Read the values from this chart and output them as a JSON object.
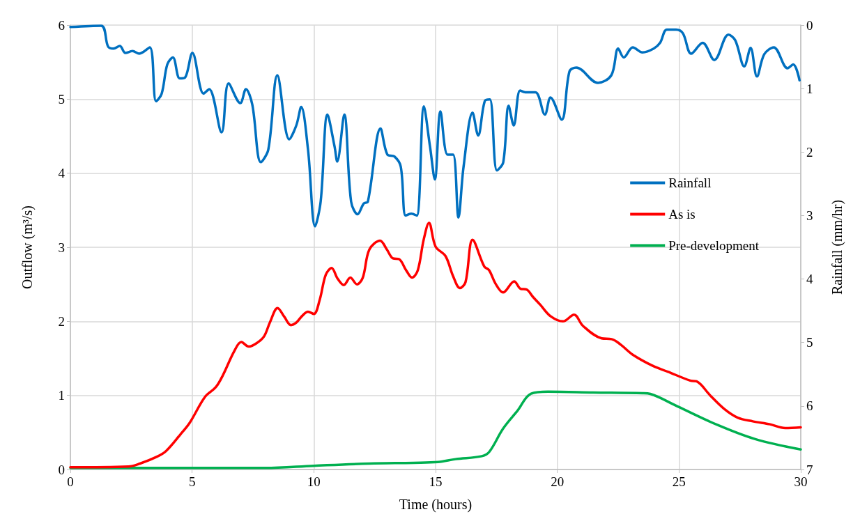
{
  "chart_data": {
    "type": "line",
    "xlabel": "Time (hours)",
    "ylabel": "Outflow (m³/s)",
    "y2label": "Rainfall (mm/hr)",
    "xlim": [
      0,
      30
    ],
    "xticks": [
      0,
      5,
      10,
      15,
      20,
      25,
      30
    ],
    "ylim": [
      0,
      6
    ],
    "yticks": [
      0,
      1,
      2,
      3,
      4,
      5,
      6
    ],
    "y2lim": [
      7,
      0
    ],
    "y2ticks": [
      0,
      1,
      2,
      3,
      4,
      5,
      6,
      7
    ],
    "grid": true,
    "legend": "right",
    "marker": "none",
    "line_style": "solid",
    "series": [
      {
        "name": "Rainfall",
        "color": "#0070c0",
        "axis": "y2",
        "x": [
          0,
          1.26,
          1.55,
          1.77,
          2.03,
          2.26,
          2.55,
          2.83,
          3.26,
          3.52,
          3.75,
          3.98,
          4.21,
          4.49,
          4.7,
          5.01,
          5.47,
          5.7,
          6.21,
          6.5,
          6.98,
          7.21,
          7.47,
          7.82,
          8.13,
          8.5,
          8.99,
          9.28,
          9.48,
          9.76,
          10.05,
          10.28,
          10.56,
          10.85,
          10.96,
          11.25,
          11.53,
          11.8,
          12.05,
          12.22,
          12.74,
          13.02,
          13.31,
          13.57,
          13.77,
          14.0,
          14.23,
          14.52,
          14.77,
          14.97,
          15.2,
          15.49,
          15.72,
          15.94,
          16.15,
          16.52,
          16.75,
          17.03,
          17.23,
          17.52,
          17.78,
          18.0,
          18.21,
          18.47,
          18.69,
          19.1,
          19.49,
          19.72,
          20.18,
          20.5,
          20.78,
          21.67,
          22.22,
          22.5,
          22.73,
          23.1,
          23.5,
          23.96,
          24.22,
          24.5,
          24.88,
          25.16,
          25.5,
          25.97,
          26.45,
          27.03,
          27.31,
          27.68,
          27.94,
          28.2,
          28.5,
          28.89,
          29.46,
          29.69,
          29.95
        ],
        "values": [
          0.03,
          0.01,
          0.34,
          0.37,
          0.33,
          0.44,
          0.41,
          0.45,
          0.35,
          1.2,
          1.08,
          0.62,
          0.51,
          0.84,
          0.83,
          0.44,
          1.08,
          1.01,
          1.69,
          0.92,
          1.23,
          1.01,
          1.25,
          2.16,
          1.96,
          0.79,
          1.8,
          1.58,
          1.29,
          1.96,
          3.17,
          2.78,
          1.41,
          1.91,
          2.15,
          1.41,
          2.78,
          2.98,
          2.81,
          2.78,
          1.63,
          2.04,
          2.07,
          2.23,
          3.0,
          2.97,
          3.0,
          1.28,
          1.91,
          2.43,
          1.36,
          2.04,
          2.04,
          3.03,
          2.23,
          1.38,
          1.74,
          1.19,
          1.17,
          2.29,
          2.16,
          1.27,
          1.58,
          1.03,
          1.06,
          1.06,
          1.41,
          1.14,
          1.49,
          0.73,
          0.67,
          0.91,
          0.79,
          0.37,
          0.51,
          0.35,
          0.43,
          0.37,
          0.28,
          0.07,
          0.07,
          0.13,
          0.45,
          0.28,
          0.55,
          0.15,
          0.24,
          0.65,
          0.36,
          0.81,
          0.46,
          0.35,
          0.68,
          0.62,
          0.87
        ]
      },
      {
        "name": "As is",
        "color": "#ff0000",
        "x": [
          0,
          2.38,
          2.86,
          3.54,
          3.93,
          4.51,
          4.9,
          5.53,
          5.97,
          6.26,
          6.75,
          7.02,
          7.33,
          7.67,
          7.96,
          8.2,
          8.51,
          8.79,
          9.06,
          9.27,
          9.51,
          9.76,
          10.0,
          10.24,
          10.49,
          10.73,
          10.97,
          11.23,
          11.5,
          11.77,
          12.01,
          12.28,
          12.72,
          13.0,
          13.25,
          13.5,
          13.79,
          14.03,
          14.27,
          14.51,
          14.73,
          15.0,
          15.41,
          15.72,
          16.0,
          16.23,
          16.52,
          17.0,
          17.2,
          17.46,
          17.77,
          18.23,
          18.49,
          18.74,
          19.0,
          19.31,
          19.72,
          20.23,
          20.69,
          21.05,
          21.82,
          22.23,
          22.59,
          23.1,
          23.92,
          24.54,
          25.46,
          25.72,
          26.28,
          26.85,
          27.41,
          28.03,
          28.74,
          29.36,
          30
        ],
        "values": [
          0.03,
          0.04,
          0.08,
          0.17,
          0.25,
          0.47,
          0.63,
          0.98,
          1.11,
          1.27,
          1.61,
          1.72,
          1.66,
          1.71,
          1.8,
          1.99,
          2.18,
          2.06,
          1.95,
          1.98,
          2.07,
          2.13,
          2.1,
          2.29,
          2.63,
          2.72,
          2.58,
          2.49,
          2.59,
          2.5,
          2.59,
          2.97,
          3.09,
          2.97,
          2.85,
          2.84,
          2.69,
          2.59,
          2.69,
          3.1,
          3.33,
          3.01,
          2.88,
          2.61,
          2.45,
          2.53,
          3.1,
          2.74,
          2.69,
          2.51,
          2.39,
          2.54,
          2.44,
          2.43,
          2.33,
          2.22,
          2.07,
          2.0,
          2.09,
          1.94,
          1.77,
          1.76,
          1.69,
          1.55,
          1.4,
          1.32,
          1.2,
          1.19,
          1.0,
          0.82,
          0.7,
          0.65,
          0.61,
          0.56,
          0.57
        ]
      },
      {
        "name": "Pre-development",
        "color": "#00b050",
        "x": [
          0,
          8.0,
          10.0,
          12.28,
          14.1,
          15.1,
          15.82,
          16.9,
          17.21,
          17.77,
          18.38,
          18.9,
          19.62,
          21.47,
          23.51,
          23.82,
          24.95,
          26.59,
          28.13,
          30
        ],
        "values": [
          0.02,
          0.02,
          0.05,
          0.08,
          0.09,
          0.1,
          0.14,
          0.18,
          0.24,
          0.55,
          0.8,
          1.02,
          1.05,
          1.04,
          1.03,
          1.02,
          0.85,
          0.6,
          0.41,
          0.27
        ]
      }
    ]
  }
}
